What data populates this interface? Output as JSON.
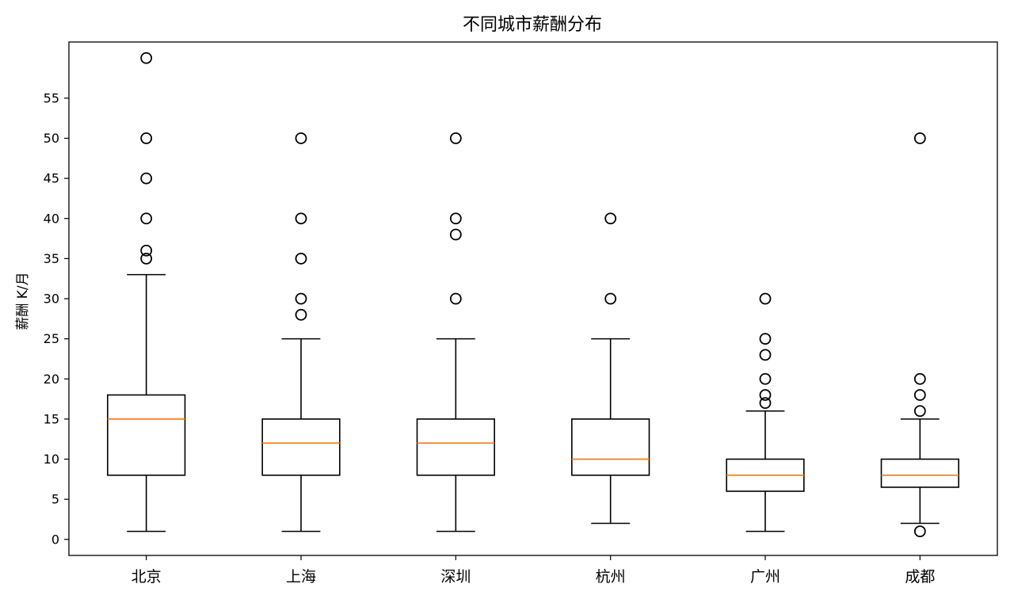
{
  "chart_data": {
    "type": "box",
    "title": "不同城市薪酬分布",
    "xlabel": "",
    "ylabel": "薪酬 K/月",
    "categories": [
      "北京",
      "上海",
      "深圳",
      "杭州",
      "广州",
      "成都"
    ],
    "ylim": [
      -2,
      62
    ],
    "yticks": [
      0,
      5,
      10,
      15,
      20,
      25,
      30,
      35,
      40,
      45,
      50,
      55
    ],
    "grid": false,
    "colors": {
      "box": "#000000",
      "median": "#ff7f0e",
      "flier": "#000000"
    },
    "boxes": [
      {
        "category": "北京",
        "whisker_low": 1,
        "q1": 8,
        "median": 15,
        "q3": 18,
        "whisker_high": 33,
        "outliers": [
          35,
          36,
          40,
          45,
          50,
          60
        ]
      },
      {
        "category": "上海",
        "whisker_low": 1,
        "q1": 8,
        "median": 12,
        "q3": 15,
        "whisker_high": 25,
        "outliers": [
          28,
          30,
          35,
          40,
          50
        ]
      },
      {
        "category": "深圳",
        "whisker_low": 1,
        "q1": 8,
        "median": 12,
        "q3": 15,
        "whisker_high": 25,
        "outliers": [
          30,
          38,
          40,
          50
        ]
      },
      {
        "category": "杭州",
        "whisker_low": 2,
        "q1": 8,
        "median": 10,
        "q3": 15,
        "whisker_high": 25,
        "outliers": [
          30,
          40
        ]
      },
      {
        "category": "广州",
        "whisker_low": 1,
        "q1": 6,
        "median": 8,
        "q3": 10,
        "whisker_high": 16,
        "outliers": [
          17,
          18,
          20,
          23,
          25,
          30
        ]
      },
      {
        "category": "成都",
        "whisker_low": 2,
        "q1": 6.5,
        "median": 8,
        "q3": 10,
        "whisker_high": 15,
        "outliers": [
          1,
          16,
          18,
          20,
          50
        ]
      }
    ]
  }
}
